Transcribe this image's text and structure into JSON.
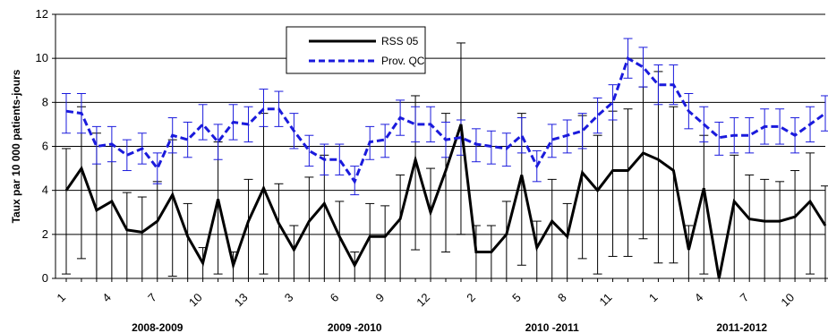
{
  "chart_data": {
    "type": "line",
    "ylabel": "Taux par 10 000 patients-jours",
    "ylim": [
      0,
      12
    ],
    "yticks": [
      0,
      2,
      4,
      6,
      8,
      10,
      12
    ],
    "grid": true,
    "legend_position": "top-left-inside",
    "x_tick_labels": [
      "1",
      "4",
      "7",
      "10",
      "13",
      "3",
      "6",
      "9",
      "12",
      "2",
      "5",
      "8",
      "11",
      "1",
      "4",
      "7",
      "10"
    ],
    "x_tick_indices": [
      0,
      3,
      6,
      9,
      12,
      15,
      18,
      21,
      24,
      27,
      30,
      33,
      36,
      39,
      42,
      45,
      48
    ],
    "groups": [
      {
        "label": "2008-2009",
        "start": 0,
        "end": 12
      },
      {
        "label": "2009 -2010",
        "start": 13,
        "end": 25
      },
      {
        "label": "2010 -2011",
        "start": 26,
        "end": 38
      },
      {
        "label": "2011-2012",
        "start": 39,
        "end": 50
      }
    ],
    "series": [
      {
        "name": "RSS 05",
        "color": "#000000",
        "dash": "solid",
        "values": [
          4.0,
          5.0,
          3.1,
          3.5,
          2.2,
          2.1,
          2.6,
          3.8,
          1.9,
          0.7,
          3.6,
          0.6,
          2.6,
          4.1,
          2.5,
          1.3,
          2.6,
          3.4,
          1.9,
          0.6,
          1.9,
          1.9,
          2.7,
          5.4,
          3.0,
          4.9,
          7.0,
          1.2,
          1.2,
          2.0,
          4.7,
          1.4,
          2.6,
          1.9,
          4.8,
          4.0,
          4.9,
          4.9,
          5.7,
          5.4,
          4.9,
          1.3,
          4.1,
          0.0,
          3.5,
          2.7,
          2.6,
          2.6,
          2.8,
          3.5,
          2.4
        ],
        "err_low": [
          0.2,
          0.9,
          0.0,
          0.0,
          0.0,
          0.0,
          0.0,
          0.1,
          0.0,
          0.0,
          0.2,
          0.0,
          0.0,
          0.2,
          0.0,
          0.0,
          0.0,
          0.0,
          0.0,
          0.0,
          0.0,
          0.0,
          0.0,
          1.3,
          0.0,
          1.2,
          2.0,
          0.0,
          0.0,
          0.0,
          0.6,
          0.0,
          0.0,
          0.0,
          0.9,
          0.2,
          1.0,
          1.0,
          1.8,
          0.7,
          0.7,
          0.0,
          0.2,
          0.0,
          0.0,
          0.0,
          0.0,
          0.0,
          0.0,
          0.2,
          0.0
        ],
        "err_high": [
          5.9,
          7.8,
          6.6,
          6.0,
          3.9,
          3.7,
          4.4,
          6.3,
          3.4,
          1.4,
          6.2,
          1.2,
          4.5,
          7.5,
          4.3,
          2.4,
          4.6,
          5.6,
          3.5,
          1.2,
          3.4,
          3.3,
          4.7,
          8.3,
          5.0,
          7.5,
          10.7,
          2.4,
          2.4,
          3.5,
          7.5,
          2.6,
          4.5,
          3.4,
          7.4,
          6.5,
          7.6,
          7.7,
          8.7,
          9.4,
          7.8,
          2.4,
          6.5,
          0.0,
          5.6,
          4.7,
          4.5,
          4.4,
          4.9,
          5.7,
          4.2
        ]
      },
      {
        "name": "Prov. QC",
        "color": "#1a1adc",
        "dash": "dashed",
        "values": [
          7.6,
          7.5,
          6.0,
          6.1,
          5.6,
          5.9,
          5.0,
          6.5,
          6.3,
          7.0,
          6.2,
          7.1,
          7.0,
          7.7,
          7.7,
          6.7,
          5.8,
          5.4,
          5.4,
          4.4,
          6.2,
          6.3,
          7.3,
          7.0,
          7.0,
          6.3,
          6.4,
          6.1,
          6.0,
          5.9,
          6.5,
          5.1,
          6.3,
          6.5,
          6.7,
          7.4,
          8.0,
          10.0,
          9.6,
          8.8,
          8.8,
          7.6,
          7.0,
          6.4,
          6.5,
          6.5,
          6.9,
          6.9,
          6.5,
          7.0,
          7.5
        ],
        "err_low": [
          6.6,
          6.6,
          5.2,
          5.3,
          4.9,
          5.2,
          4.3,
          5.7,
          5.5,
          6.3,
          5.4,
          6.3,
          6.2,
          6.9,
          6.9,
          5.9,
          5.1,
          4.7,
          4.7,
          3.8,
          5.4,
          5.5,
          6.5,
          6.2,
          6.2,
          5.5,
          5.6,
          5.3,
          5.2,
          5.1,
          5.7,
          4.4,
          5.5,
          5.7,
          5.9,
          6.6,
          7.2,
          9.1,
          8.7,
          7.9,
          7.9,
          6.8,
          6.2,
          5.6,
          5.7,
          5.7,
          6.1,
          6.1,
          5.7,
          6.2,
          6.7
        ],
        "err_high": [
          8.4,
          8.4,
          6.9,
          6.9,
          6.3,
          6.6,
          5.7,
          7.3,
          7.1,
          7.9,
          7.0,
          7.9,
          7.8,
          8.6,
          8.5,
          7.5,
          6.5,
          6.1,
          6.1,
          5.1,
          6.9,
          7.0,
          8.1,
          7.8,
          7.8,
          7.1,
          7.2,
          6.8,
          6.7,
          6.6,
          7.3,
          5.8,
          7.0,
          7.2,
          7.5,
          8.2,
          8.8,
          10.9,
          10.5,
          9.7,
          9.7,
          8.4,
          7.8,
          7.1,
          7.3,
          7.3,
          7.7,
          7.7,
          7.3,
          7.8,
          8.3
        ]
      }
    ]
  }
}
